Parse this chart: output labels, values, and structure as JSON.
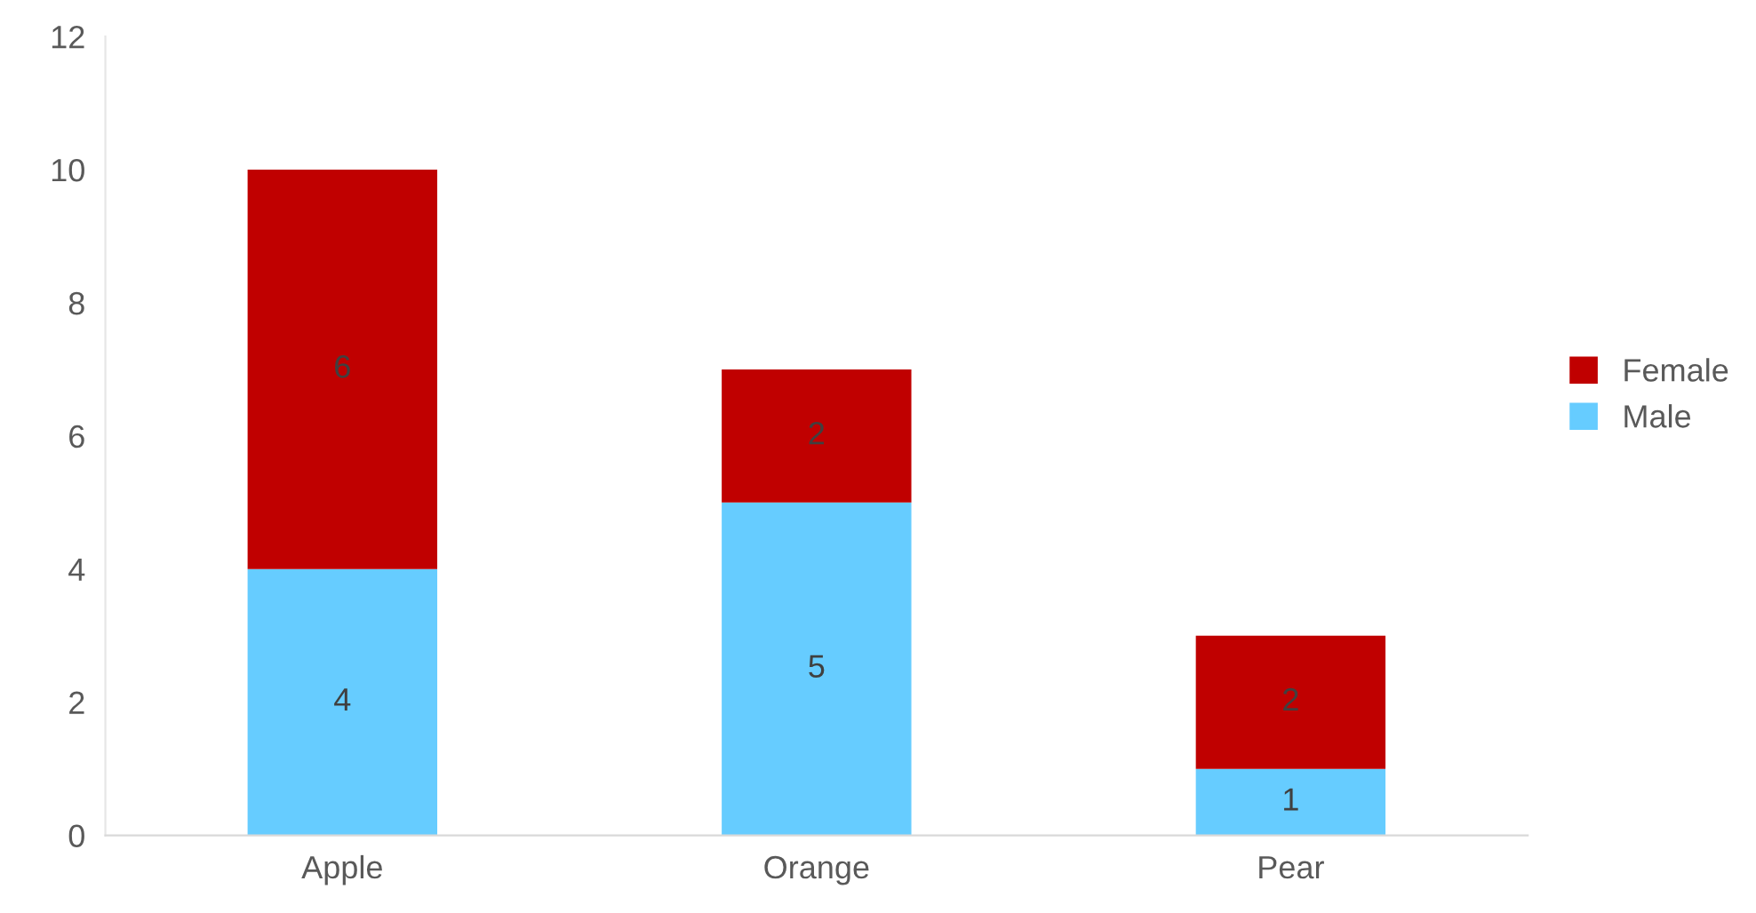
{
  "chart_data": {
    "type": "bar",
    "stacked": true,
    "categories": [
      "Apple",
      "Orange",
      "Pear"
    ],
    "series": [
      {
        "name": "Male",
        "color": "#66ccff",
        "values": [
          4,
          5,
          1
        ]
      },
      {
        "name": "Female",
        "color": "#c00000",
        "values": [
          6,
          2,
          2
        ]
      }
    ],
    "ylim": [
      0,
      12
    ],
    "yticks": [
      0,
      2,
      4,
      6,
      8,
      10,
      12
    ],
    "grid": false,
    "legend": "right",
    "data_labels": true
  }
}
